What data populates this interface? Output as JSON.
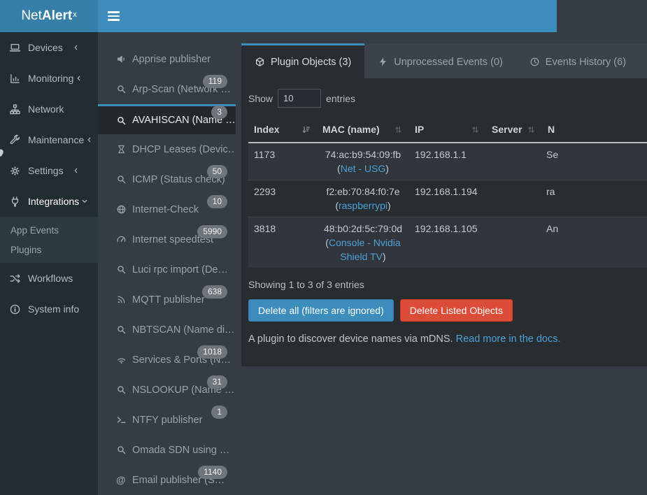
{
  "header": {
    "brand_net": "Net",
    "brand_alert": "Alert",
    "brand_sup": "x"
  },
  "colors": {
    "accent": "#3c8dbc",
    "danger": "#dd4b39",
    "link": "#4d9fd6"
  },
  "sidebar": {
    "items": [
      {
        "label": "Devices",
        "icon": "laptop",
        "chevron": "left"
      },
      {
        "label": "Monitoring",
        "icon": "chart",
        "chevron": "left"
      },
      {
        "label": "Network",
        "icon": "network",
        "chevron": ""
      },
      {
        "label": "Maintenance",
        "icon": "wrench",
        "chevron": "left"
      },
      {
        "label": "Settings",
        "icon": "gear",
        "chevron": "left"
      },
      {
        "label": "Integrations",
        "icon": "plug",
        "chevron": "down",
        "active": true,
        "children": [
          {
            "label": "App Events"
          },
          {
            "label": "Plugins"
          }
        ]
      },
      {
        "label": "Workflows",
        "icon": "shuffle",
        "chevron": ""
      },
      {
        "label": "System info",
        "icon": "info",
        "chevron": ""
      }
    ]
  },
  "plugins_list": [
    {
      "label": "Apprise publisher",
      "icon": "bullhorn",
      "badge": ""
    },
    {
      "label": "Arp-Scan (Network …",
      "icon": "search",
      "badge": "119"
    },
    {
      "label": "AVAHISCAN (Name …",
      "icon": "search",
      "badge": "3",
      "selected": true
    },
    {
      "label": "DHCP Leases (Devic…",
      "icon": "hourglass",
      "badge": ""
    },
    {
      "label": "ICMP (Status check)",
      "icon": "search",
      "badge": "50"
    },
    {
      "label": "Internet-Check",
      "icon": "globe",
      "badge": "10"
    },
    {
      "label": "Internet speedtest",
      "icon": "gauge",
      "badge": "5990"
    },
    {
      "label": "Luci rpc import (De…",
      "icon": "search",
      "badge": ""
    },
    {
      "label": "MQTT publisher",
      "icon": "rss",
      "badge": "638"
    },
    {
      "label": "NBTSCAN (Name di…",
      "icon": "search",
      "badge": ""
    },
    {
      "label": "Services & Ports (N…",
      "icon": "signal",
      "badge": "1018"
    },
    {
      "label": "NSLOOKUP (Name …",
      "icon": "search",
      "badge": "31"
    },
    {
      "label": "NTFY publisher",
      "icon": "terminal",
      "badge": "1"
    },
    {
      "label": "Omada SDN using …",
      "icon": "search",
      "badge": ""
    },
    {
      "label": "Email publisher (S…",
      "icon": "at",
      "badge": "1140"
    }
  ],
  "tabs": [
    {
      "label": "Plugin Objects (3)",
      "icon": "cube",
      "active": true
    },
    {
      "label": "Unprocessed Events (0)",
      "icon": "bolt",
      "active": false
    },
    {
      "label": "Events History (6)",
      "icon": "clock",
      "active": false
    }
  ],
  "table": {
    "show_label": "Show",
    "page_size": "10",
    "entries_label": "entries",
    "paren_open": "(",
    "paren_close": ")",
    "columns": [
      {
        "label": "Index",
        "sort": "asc"
      },
      {
        "label": "MAC (name)",
        "sort": "both"
      },
      {
        "label": "IP",
        "sort": "both"
      },
      {
        "label": "Server",
        "sort": "both"
      },
      {
        "label": "N",
        "sort": "none"
      }
    ],
    "rows": [
      {
        "index": "1173",
        "mac": "74:ac:b9:54:09:fb",
        "name": "Net - USG",
        "ip": "192.168.1.1",
        "server": "",
        "extra": "Se"
      },
      {
        "index": "2293",
        "mac": "f2:eb:70:84:f0:7e",
        "name": "raspberrypi",
        "ip": "192.168.1.194",
        "server": "",
        "extra": "ra"
      },
      {
        "index": "3818",
        "mac": "48:b0:2d:5c:79:0d",
        "name": "Console - Nvidia Shield TV",
        "ip": "192.168.1.105",
        "server": "",
        "extra": "An"
      }
    ],
    "summary": "Showing 1 to 3 of 3 entries"
  },
  "actions": {
    "delete_all": "Delete all (filters are ignored)",
    "delete_listed": "Delete Listed Objects"
  },
  "description": {
    "text": "A plugin to discover device names via mDNS.",
    "link": "Read more in the docs."
  }
}
